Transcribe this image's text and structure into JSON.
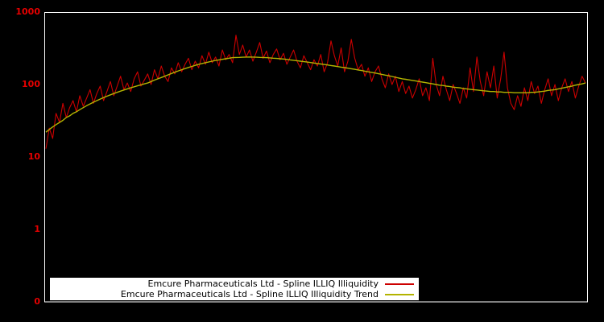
{
  "chart_data": {
    "type": "line",
    "title": "",
    "xlabel": "",
    "ylabel": "",
    "y_scale": "log",
    "ylim": [
      0.1,
      1000
    ],
    "grid": false,
    "background_color": "#000000",
    "axis_color": "#ffffff",
    "tick_label_color": "#e60000",
    "legend_position": "bottom-center",
    "y_ticks": [
      {
        "label": "1000",
        "value": 1000
      },
      {
        "label": "100",
        "value": 100
      },
      {
        "label": "10",
        "value": 10
      },
      {
        "label": "1",
        "value": 1
      },
      {
        "label": "0",
        "value": 0.1
      }
    ],
    "series": [
      {
        "name": "Emcure Pharmaceuticals Ltd - Spline ILLIQ Illiquidity",
        "color": "#cc0000",
        "values": [
          13,
          25,
          18,
          40,
          30,
          55,
          35,
          48,
          60,
          42,
          70,
          50,
          65,
          85,
          55,
          75,
          95,
          60,
          80,
          110,
          70,
          95,
          130,
          85,
          105,
          80,
          120,
          150,
          95,
          115,
          140,
          100,
          160,
          120,
          180,
          130,
          110,
          170,
          140,
          200,
          150,
          190,
          230,
          160,
          210,
          170,
          250,
          190,
          280,
          200,
          240,
          180,
          300,
          220,
          260,
          200,
          480,
          260,
          350,
          240,
          300,
          210,
          280,
          380,
          230,
          290,
          200,
          260,
          310,
          220,
          270,
          190,
          240,
          300,
          210,
          170,
          250,
          200,
          160,
          220,
          180,
          260,
          150,
          200,
          400,
          250,
          180,
          320,
          150,
          210,
          420,
          230,
          160,
          190,
          130,
          170,
          110,
          150,
          180,
          120,
          90,
          140,
          100,
          130,
          80,
          110,
          75,
          95,
          65,
          85,
          120,
          70,
          90,
          60,
          230,
          100,
          70,
          130,
          85,
          60,
          100,
          75,
          55,
          90,
          65,
          170,
          80,
          240,
          110,
          70,
          150,
          90,
          180,
          65,
          120,
          280,
          90,
          55,
          45,
          70,
          50,
          90,
          60,
          110,
          75,
          95,
          55,
          85,
          120,
          70,
          100,
          60,
          90,
          120,
          80,
          110,
          65,
          95,
          130,
          105
        ]
      },
      {
        "name": "Emcure Pharmaceuticals Ltd - Spline ILLIQ Illiquidity Trend",
        "color": "#b3b300",
        "values": [
          22,
          24,
          26,
          28,
          30,
          32,
          35,
          37,
          40,
          42,
          45,
          48,
          51,
          54,
          57,
          60,
          63,
          66,
          69,
          72,
          75,
          78,
          81,
          84,
          87,
          90,
          93,
          96,
          99,
          102,
          105,
          110,
          115,
          120,
          125,
          130,
          136,
          142,
          148,
          154,
          160,
          166,
          172,
          178,
          184,
          190,
          195,
          200,
          205,
          210,
          215,
          219,
          223,
          227,
          231,
          235,
          236,
          237,
          238,
          239,
          240,
          239,
          238,
          237,
          236,
          235,
          233,
          231,
          229,
          227,
          225,
          222,
          219,
          216,
          213,
          210,
          207,
          204,
          201,
          198,
          195,
          192,
          189,
          186,
          183,
          180,
          177,
          174,
          171,
          168,
          165,
          162,
          159,
          156,
          153,
          150,
          147,
          144,
          141,
          138,
          135,
          132,
          129,
          126,
          123,
          120,
          118,
          116,
          114,
          112,
          110,
          108,
          106,
          104,
          102,
          100,
          98,
          97,
          95,
          94,
          92,
          91,
          90,
          88,
          87,
          86,
          85,
          84,
          83,
          82,
          81,
          80,
          80,
          79,
          79,
          78,
          78,
          78,
          77,
          77,
          77,
          77,
          77,
          78,
          78,
          79,
          80,
          81,
          83,
          84,
          85,
          87,
          89,
          91,
          93,
          95,
          98,
          100,
          102,
          105
        ]
      }
    ]
  }
}
